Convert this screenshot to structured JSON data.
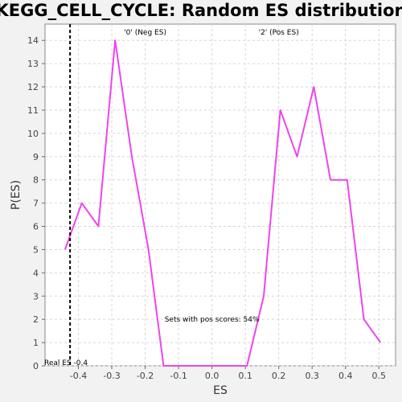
{
  "chart_data": {
    "type": "line",
    "title": "KEGG_CELL_CYCLE: Random ES distribution",
    "xlabel": "ES",
    "ylabel": "P(ES)",
    "xlim": [
      -0.5,
      0.55
    ],
    "ylim": [
      0,
      14.7
    ],
    "xticks": [
      -0.4,
      -0.3,
      -0.2,
      -0.1,
      0.0,
      0.1,
      0.2,
      0.3,
      0.4,
      0.5
    ],
    "xtick_labels": [
      "-0.4",
      "-0.3",
      "-0.2",
      "-0.1",
      "0.0",
      "0.1",
      "0.2",
      "0.3",
      "0.4",
      "0.5"
    ],
    "yticks": [
      0,
      1,
      2,
      3,
      4,
      5,
      6,
      7,
      8,
      9,
      10,
      11,
      12,
      13,
      14
    ],
    "ytick_labels": [
      "0",
      "1",
      "2",
      "3",
      "4",
      "5",
      "6",
      "7",
      "8",
      "9",
      "10",
      "11",
      "12",
      "13",
      "14"
    ],
    "grid": true,
    "series": [
      {
        "color": "#ee44ee",
        "x": [
          -0.44,
          -0.39,
          -0.34,
          -0.29,
          -0.24,
          -0.19,
          -0.145,
          -0.1,
          -0.05,
          0.0,
          0.05,
          0.105,
          0.155,
          0.205,
          0.255,
          0.305,
          0.355,
          0.405,
          0.455,
          0.505
        ],
        "y": [
          5,
          7,
          6,
          14,
          9,
          5,
          0,
          0,
          0,
          0,
          0,
          0,
          3,
          11,
          9,
          12,
          8,
          8,
          2,
          1
        ]
      }
    ],
    "real_es": {
      "value": -0.425,
      "label": "Real ES -0.4",
      "color": "#000000"
    },
    "annotations": {
      "neg_label": "'0' (Neg ES)",
      "neg_color": "#2222cc",
      "pos_label": "'2' (Pos ES)",
      "pos_color": "#dd2222",
      "pos_scores": "Sets with pos scores: 54%"
    }
  }
}
